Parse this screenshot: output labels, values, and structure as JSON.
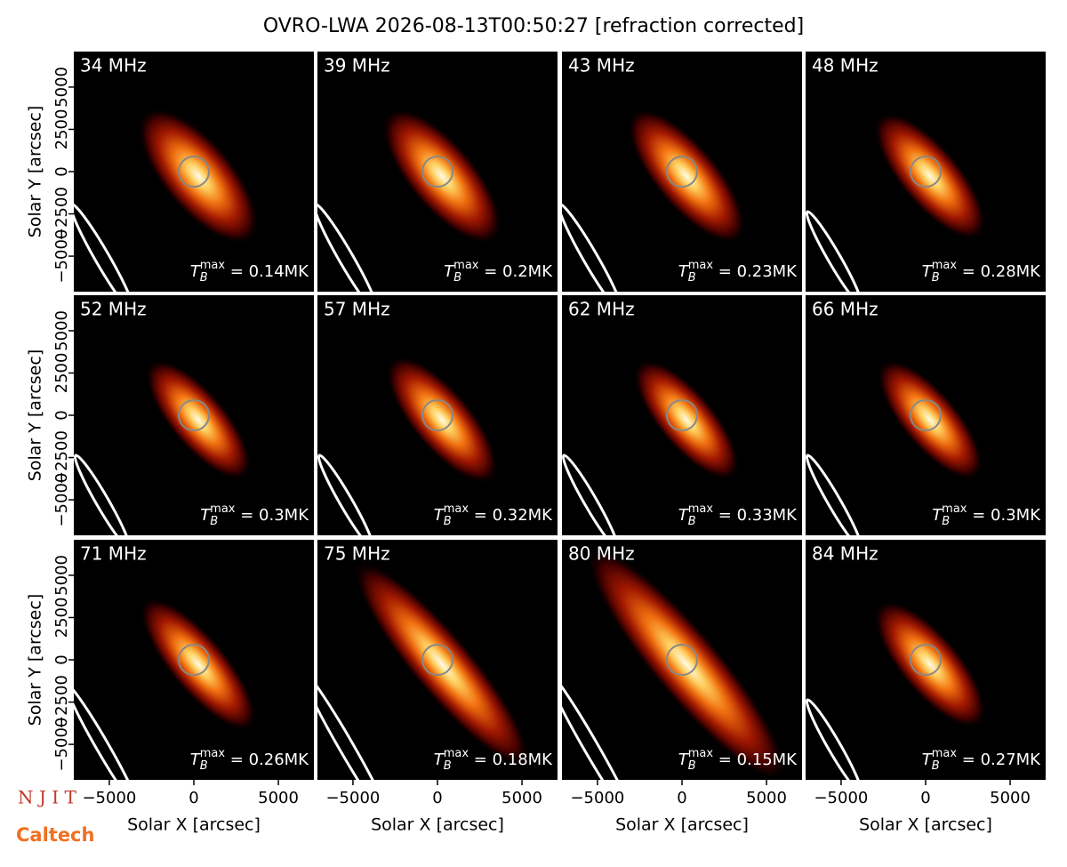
{
  "chart_data": {
    "type": "image-grid",
    "title": "OVRO-LWA 2026-08-13T00:50:27 [refraction corrected]",
    "xlabel": "Solar X [arcsec]",
    "ylabel": "Solar Y [arcsec]",
    "xlim": [
      -7100,
      7100
    ],
    "ylim": [
      -7100,
      7100
    ],
    "xticks": [
      {
        "value": -5000,
        "label": "−5000"
      },
      0,
      5000
    ],
    "yticks": [
      {
        "value": -5000,
        "label": "−5000"
      },
      {
        "value": -2500,
        "label": "−2500"
      },
      0,
      2500,
      5000
    ],
    "tb_symbol": {
      "base": "T",
      "sub": "B",
      "sup": "max",
      "eq": " = "
    },
    "panels": [
      {
        "label": "34 MHz",
        "tb_max": {
          "value": 0.14,
          "label": "0.14MK"
        }
      },
      {
        "label": "39 MHz",
        "tb_max": {
          "value": 0.2,
          "label": "0.2MK"
        }
      },
      {
        "label": "43 MHz",
        "tb_max": {
          "value": 0.23,
          "label": "0.23MK"
        }
      },
      {
        "label": "48 MHz",
        "tb_max": {
          "value": 0.28,
          "label": "0.28MK"
        }
      },
      {
        "label": "52 MHz",
        "tb_max": {
          "value": 0.3,
          "label": "0.3MK"
        }
      },
      {
        "label": "57 MHz",
        "tb_max": {
          "value": 0.32,
          "label": "0.32MK"
        }
      },
      {
        "label": "62 MHz",
        "tb_max": {
          "value": 0.33,
          "label": "0.33MK"
        }
      },
      {
        "label": "66 MHz",
        "tb_max": {
          "value": 0.3,
          "label": "0.3MK"
        }
      },
      {
        "label": "71 MHz",
        "tb_max": {
          "value": 0.26,
          "label": "0.26MK"
        }
      },
      {
        "label": "75 MHz",
        "tb_max": {
          "value": 0.18,
          "label": "0.18MK"
        }
      },
      {
        "label": "80 MHz",
        "tb_max": {
          "value": 0.15,
          "label": "0.15MK"
        }
      },
      {
        "label": "84 MHz",
        "tb_max": {
          "value": 0.27,
          "label": "0.27MK"
        }
      }
    ]
  },
  "logos": [
    "N J I T",
    "Caltech"
  ]
}
